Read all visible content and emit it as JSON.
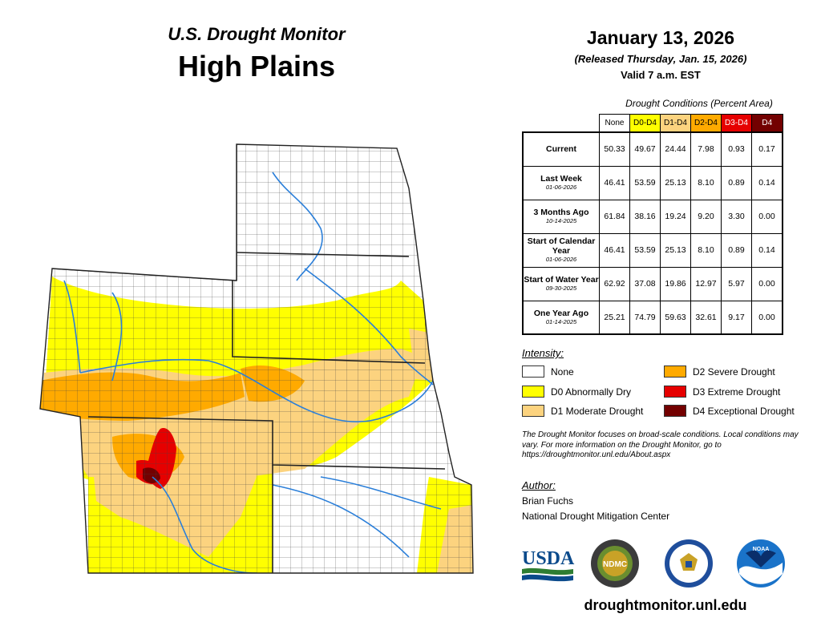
{
  "header": {
    "subtitle": "U.S. Drought Monitor",
    "region": "High Plains",
    "date": "January 13, 2026",
    "released": "(Released Thursday, Jan. 15, 2026)",
    "valid": "Valid 7 a.m. EST"
  },
  "table": {
    "caption": "Drought Conditions (Percent Area)",
    "columns": [
      "None",
      "D0-D4",
      "D1-D4",
      "D2-D4",
      "D3-D4",
      "D4"
    ],
    "column_colors": [
      "#ffffff",
      "#ffff00",
      "#fcd37f",
      "#ffaa00",
      "#e60000",
      "#730000"
    ],
    "rows": [
      {
        "label": "Current",
        "date": "",
        "values": [
          "50.33",
          "49.67",
          "24.44",
          "7.98",
          "0.93",
          "0.17"
        ]
      },
      {
        "label": "Last Week",
        "date": "01-06-2026",
        "values": [
          "46.41",
          "53.59",
          "25.13",
          "8.10",
          "0.89",
          "0.14"
        ]
      },
      {
        "label": "3 Months Ago",
        "date": "10-14-2025",
        "values": [
          "61.84",
          "38.16",
          "19.24",
          "9.20",
          "3.30",
          "0.00"
        ]
      },
      {
        "label": "Start of Calendar Year",
        "date": "01-06-2026",
        "values": [
          "46.41",
          "53.59",
          "25.13",
          "8.10",
          "0.89",
          "0.14"
        ]
      },
      {
        "label": "Start of Water Year",
        "date": "09-30-2025",
        "values": [
          "62.92",
          "37.08",
          "19.86",
          "12.97",
          "5.97",
          "0.00"
        ]
      },
      {
        "label": "One Year Ago",
        "date": "01-14-2025",
        "values": [
          "25.21",
          "74.79",
          "59.63",
          "32.61",
          "9.17",
          "0.00"
        ]
      }
    ]
  },
  "legend": {
    "title": "Intensity:",
    "items": [
      {
        "label": "None",
        "color": "#ffffff"
      },
      {
        "label": "D0 Abnormally Dry",
        "color": "#ffff00"
      },
      {
        "label": "D1 Moderate Drought",
        "color": "#fcd37f"
      },
      {
        "label": "D2 Severe Drought",
        "color": "#ffaa00"
      },
      {
        "label": "D3 Extreme Drought",
        "color": "#e60000"
      },
      {
        "label": "D4 Exceptional Drought",
        "color": "#730000"
      }
    ]
  },
  "note": "The Drought Monitor focuses on broad-scale conditions. Local conditions may vary. For more information on the Drought Monitor, go to https://droughtmonitor.unl.edu/About.aspx",
  "author": {
    "title": "Author:",
    "name": "Brian Fuchs",
    "org": "National Drought Mitigation Center"
  },
  "logos": {
    "usda": "USDA",
    "ndmc": "NDMC",
    "noaa": "NOAA"
  },
  "url": "droughtmonitor.unl.edu"
}
